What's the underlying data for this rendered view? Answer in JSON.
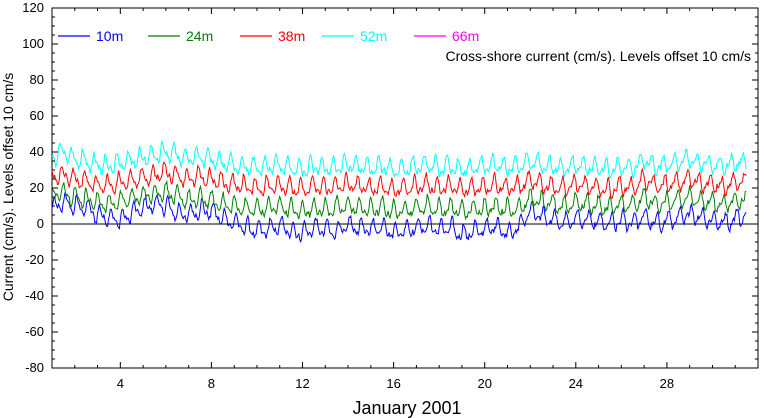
{
  "chart_data": {
    "type": "line",
    "title": "",
    "annotation": "Cross-shore current (cm/s). Levels offset 10 cm/s",
    "xlabel": "January 2001",
    "ylabel": "Current (cm/s). Levels offset 10 cm/s",
    "xlim": [
      1,
      32
    ],
    "ylim": [
      -80,
      120
    ],
    "x_ticks": [
      4,
      8,
      12,
      16,
      20,
      24,
      28
    ],
    "y_ticks": [
      -80,
      -60,
      -40,
      -20,
      0,
      20,
      40,
      60,
      80,
      100,
      120
    ],
    "zero_line": true,
    "grid": false,
    "legend_position": "top-left",
    "series": [
      {
        "name": "10m",
        "color": "#0000ff",
        "offset": 0,
        "values_note": "",
        "x": [
          1,
          1.5,
          2,
          2.5,
          3,
          3.5,
          4,
          4.5,
          5,
          5.5,
          6,
          6.5,
          7,
          7.5,
          8,
          8.5,
          9,
          9.5,
          10,
          10.5,
          11,
          11.5,
          12,
          12.5,
          13,
          13.5,
          14,
          14.5,
          15,
          15.5,
          16,
          16.5,
          17,
          17.5,
          18,
          18.5,
          19,
          19.5,
          20,
          20.5,
          21,
          21.5,
          22,
          22.5,
          23,
          23.5,
          24,
          24.5,
          25,
          25.5,
          26,
          26.5,
          27,
          27.5,
          28,
          28.5,
          29,
          29.5,
          30,
          30.5,
          31,
          31.5
        ],
        "y": [
          8,
          12,
          10,
          9,
          5,
          4,
          2,
          6,
          9,
          11,
          10,
          6,
          5,
          8,
          7,
          3,
          1,
          -2,
          -4,
          -3,
          -1,
          -4,
          -5,
          -2,
          -3,
          -4,
          -1,
          -2,
          -3,
          -1,
          -5,
          -3,
          -2,
          -1,
          -3,
          -2,
          -6,
          -4,
          -3,
          -1,
          -5,
          -2,
          8,
          4,
          2,
          1,
          3,
          2,
          1,
          0,
          2,
          1,
          4,
          0,
          2,
          3,
          6,
          4,
          2,
          1,
          3,
          5
        ]
      },
      {
        "name": "24m",
        "color": "#008000",
        "offset": 10,
        "x": [
          1,
          1.5,
          2,
          2.5,
          3,
          3.5,
          4,
          4.5,
          5,
          5.5,
          6,
          6.5,
          7,
          7.5,
          8,
          8.5,
          9,
          9.5,
          10,
          10.5,
          11,
          11.5,
          12,
          12.5,
          13,
          13.5,
          14,
          14.5,
          15,
          15.5,
          16,
          16.5,
          17,
          17.5,
          18,
          18.5,
          19,
          19.5,
          20,
          20.5,
          21,
          21.5,
          22,
          22.5,
          23,
          23.5,
          24,
          24.5,
          25,
          25.5,
          26,
          26.5,
          27,
          27.5,
          28,
          28.5,
          29,
          29.5,
          30,
          30.5,
          31,
          31.5
        ],
        "y": [
          16,
          18,
          15,
          14,
          12,
          11,
          13,
          14,
          16,
          17,
          18,
          15,
          13,
          14,
          13,
          11,
          10,
          9,
          8,
          9,
          10,
          8,
          7,
          9,
          8,
          9,
          10,
          9,
          8,
          9,
          7,
          8,
          9,
          10,
          8,
          9,
          7,
          8,
          9,
          10,
          8,
          9,
          14,
          12,
          11,
          10,
          12,
          11,
          10,
          9,
          11,
          10,
          15,
          11,
          12,
          13,
          15,
          13,
          12,
          11,
          13,
          14
        ]
      },
      {
        "name": "38m",
        "color": "#ff0000",
        "offset": 20,
        "x": [
          1,
          1.5,
          2,
          2.5,
          3,
          3.5,
          4,
          4.5,
          5,
          5.5,
          6,
          6.5,
          7,
          7.5,
          8,
          8.5,
          9,
          9.5,
          10,
          10.5,
          11,
          11.5,
          12,
          12.5,
          13,
          13.5,
          14,
          14.5,
          15,
          15.5,
          16,
          16.5,
          17,
          17.5,
          18,
          18.5,
          19,
          19.5,
          20,
          20.5,
          21,
          21.5,
          22,
          22.5,
          23,
          23.5,
          24,
          24.5,
          25,
          25.5,
          26,
          26.5,
          27,
          27.5,
          28,
          28.5,
          29,
          29.5,
          30,
          30.5,
          31,
          31.5
        ],
        "y": [
          26,
          28,
          25,
          24,
          22,
          21,
          23,
          24,
          26,
          27,
          29,
          27,
          25,
          26,
          25,
          23,
          22,
          21,
          20,
          21,
          22,
          20,
          19,
          21,
          20,
          21,
          22,
          21,
          20,
          21,
          19,
          20,
          21,
          22,
          20,
          21,
          19,
          20,
          21,
          22,
          20,
          21,
          24,
          22,
          21,
          20,
          22,
          21,
          20,
          19,
          21,
          20,
          25,
          21,
          22,
          23,
          25,
          23,
          22,
          21,
          23,
          24
        ]
      },
      {
        "name": "52m",
        "color": "#00ffff",
        "offset": 30,
        "x": [
          1,
          1.5,
          2,
          2.5,
          3,
          3.5,
          4,
          4.5,
          5,
          5.5,
          6,
          6.5,
          7,
          7.5,
          8,
          8.5,
          9,
          9.5,
          10,
          10.5,
          11,
          11.5,
          12,
          12.5,
          13,
          13.5,
          14,
          14.5,
          15,
          15.5,
          16,
          16.5,
          17,
          17.5,
          18,
          18.5,
          19,
          19.5,
          20,
          20.5,
          21,
          21.5,
          22,
          22.5,
          23,
          23.5,
          24,
          24.5,
          25,
          25.5,
          26,
          26.5,
          27,
          27.5,
          28,
          28.5,
          29,
          29.5,
          30,
          30.5,
          31,
          31.5
        ],
        "y": [
          37,
          40,
          36,
          35,
          33,
          32,
          34,
          35,
          37,
          38,
          40,
          38,
          36,
          37,
          36,
          34,
          33,
          32,
          31,
          32,
          33,
          31,
          30,
          32,
          31,
          32,
          33,
          32,
          31,
          32,
          30,
          31,
          32,
          33,
          31,
          32,
          30,
          31,
          32,
          33,
          31,
          32,
          35,
          33,
          32,
          31,
          33,
          32,
          31,
          30,
          32,
          31,
          36,
          32,
          33,
          34,
          36,
          34,
          33,
          32,
          34,
          35
        ]
      },
      {
        "name": "66m",
        "color": "#ff00ff",
        "offset": 40,
        "x": [],
        "y": []
      }
    ]
  }
}
